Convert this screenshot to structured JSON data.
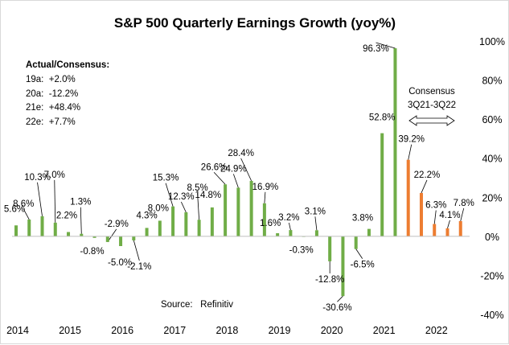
{
  "chart_data": {
    "type": "bar",
    "title": "S&P 500 Quarterly Earnings Growth (yoy%)",
    "xlabel": "",
    "ylabel": "",
    "ylim": [
      -40,
      100
    ],
    "y_ticks": [
      "-40%",
      "-20%",
      "0%",
      "20%",
      "40%",
      "60%",
      "80%",
      "100%"
    ],
    "y_tick_values": [
      -40,
      -20,
      0,
      20,
      40,
      60,
      80,
      100
    ],
    "y_axis_side": "right",
    "x_ticks": [
      "2014",
      "2015",
      "2016",
      "2017",
      "2018",
      "2019",
      "2020",
      "2021",
      "2022"
    ],
    "grid": false,
    "series": [
      {
        "name": "Actual",
        "color": "#70ad47",
        "values": [
          5.6,
          8.6,
          10.3,
          7.0,
          2.2,
          1.3,
          -0.8,
          -2.9,
          -5.0,
          -2.1,
          4.3,
          8.0,
          15.3,
          12.3,
          8.5,
          14.8,
          26.6,
          24.9,
          28.4,
          16.9,
          1.6,
          3.2,
          -0.3,
          3.1,
          -12.8,
          -30.6,
          -6.5,
          3.8,
          52.8,
          96.3
        ]
      },
      {
        "name": "Consensus",
        "color": "#ed7d31",
        "values": [
          39.2,
          22.2,
          6.3,
          4.1,
          7.8
        ]
      }
    ],
    "data_labels": [
      "5.6%",
      "8.6%",
      "10.3%",
      "7.0%",
      "2.2%",
      "1.3%",
      "-0.8%",
      "-2.9%",
      "-5.0%",
      "-2.1%",
      "4.3%",
      "8.0%",
      "15.3%",
      "12.3%",
      "8.5%",
      "14.8%",
      "26.6%",
      "24.9%",
      "28.4%",
      "16.9%",
      "1.6%",
      "3.2%",
      "-0.3%",
      "3.1%",
      "-12.8%",
      "-30.6%",
      "-6.5%",
      "3.8%",
      "52.8%",
      "96.3%",
      "39.2%",
      "22.2%",
      "6.3%",
      "4.1%",
      "7.8%"
    ],
    "annotations": {
      "summary_title": "Actual/Consensus:",
      "summary_lines": [
        "19a:  +2.0%",
        "20a:  -12.2%",
        "21e:  +48.4%",
        "22e:  +7.7%"
      ],
      "consensus_label": "Consensus",
      "consensus_range": "3Q21-3Q22",
      "source": "Source:   Refinitiv"
    }
  }
}
